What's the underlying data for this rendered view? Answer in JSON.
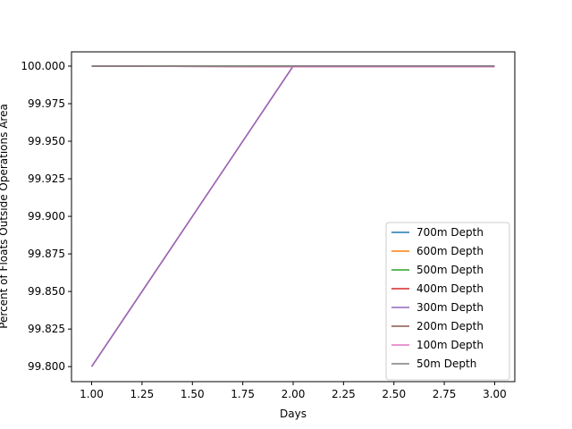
{
  "chart_data": {
    "type": "line",
    "title": "",
    "xlabel": "Days",
    "ylabel": "Percent of Floats Outside Operations Area",
    "xlim": [
      0.9,
      3.1
    ],
    "ylim": [
      99.79,
      100.0095
    ],
    "xticks": [
      1.0,
      1.25,
      1.5,
      1.75,
      2.0,
      2.25,
      2.5,
      2.75,
      3.0
    ],
    "xtick_labels": [
      "1.00",
      "1.25",
      "1.50",
      "1.75",
      "2.00",
      "2.25",
      "2.50",
      "2.75",
      "3.00"
    ],
    "yticks": [
      99.8,
      99.825,
      99.85,
      99.875,
      99.9,
      99.925,
      99.95,
      99.975,
      100.0
    ],
    "ytick_labels": [
      "99.800",
      "99.825",
      "99.850",
      "99.875",
      "99.900",
      "99.925",
      "99.950",
      "99.975",
      "100.000"
    ],
    "grid": false,
    "legend_position": "lower-right",
    "x": [
      1,
      2,
      3
    ],
    "series": [
      {
        "name": "700m Depth",
        "color": "#1f77b4",
        "values": [
          100.0,
          100.0,
          100.0
        ]
      },
      {
        "name": "600m Depth",
        "color": "#ff7f0e",
        "values": [
          100.0,
          100.0,
          100.0
        ]
      },
      {
        "name": "500m Depth",
        "color": "#2ca02c",
        "values": [
          100.0,
          100.0,
          100.0
        ]
      },
      {
        "name": "400m Depth",
        "color": "#d62728",
        "values": [
          99.8,
          100.0,
          100.0
        ]
      },
      {
        "name": "300m Depth",
        "color": "#9467bd",
        "values": [
          99.8,
          100.0,
          100.0
        ]
      },
      {
        "name": "200m Depth",
        "color": "#8c564b",
        "values": [
          100.0,
          99.9995,
          99.9995
        ]
      },
      {
        "name": "100m Depth",
        "color": "#e377c2",
        "values": [
          100.0,
          99.9995,
          99.9995
        ]
      },
      {
        "name": "50m Depth",
        "color": "#7f7f7f",
        "values": [
          100.0,
          100.0,
          100.0
        ]
      }
    ]
  }
}
